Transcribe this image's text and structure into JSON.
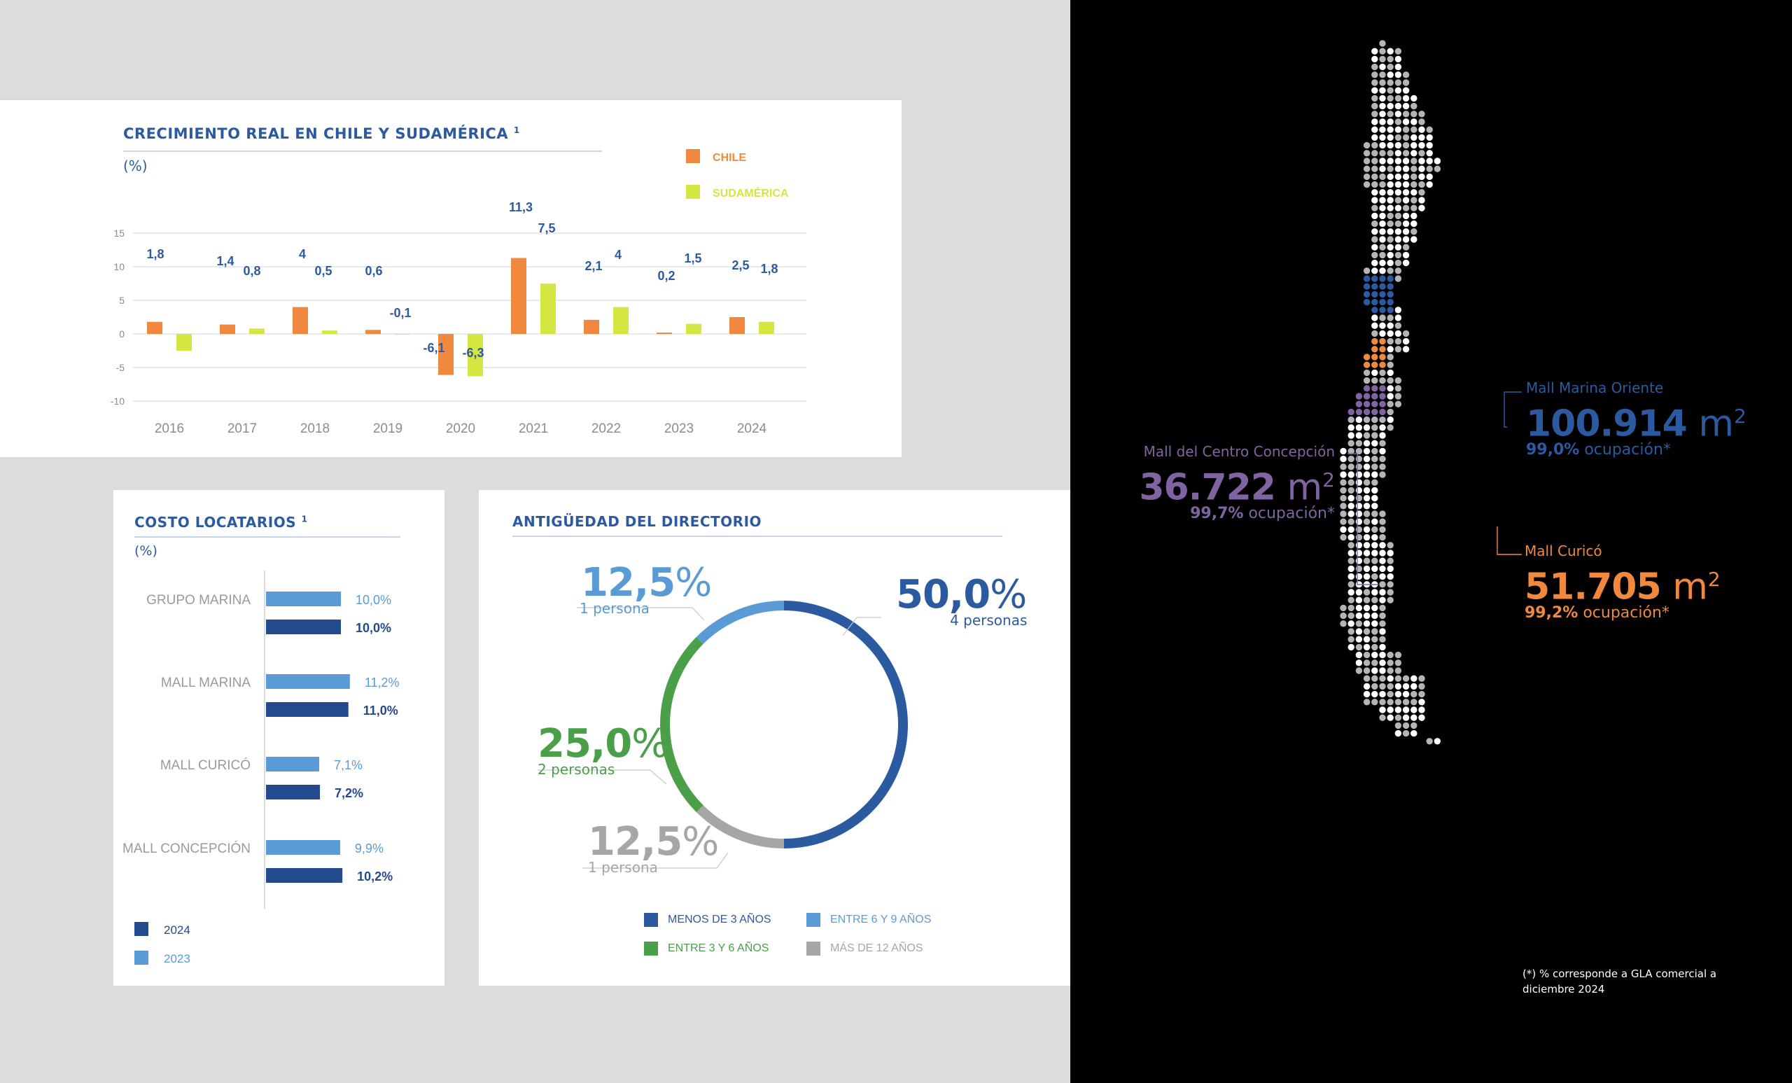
{
  "growth_panel": {
    "title": "CRECIMIENTO REAL EN CHILE Y SUDAMÉRICA",
    "superscript": "1",
    "unit": "(%)"
  },
  "costo_panel": {
    "title": "COSTO LOCATARIOS",
    "superscript": "1",
    "unit": "(%)"
  },
  "antiguedad_panel": {
    "title": "ANTIGÜEDAD DEL DIRECTORIO",
    "callouts": [
      {
        "pct": "12,5",
        "sym": "%",
        "people": "1 persona"
      },
      {
        "pct": "50,0",
        "sym": "%",
        "people": "4 personas"
      },
      {
        "pct": "25,0",
        "sym": "%",
        "people": "2 personas"
      },
      {
        "pct": "12,5",
        "sym": "%",
        "people": "1 persona"
      }
    ]
  },
  "map_panel": {
    "malls": [
      {
        "name": "Mall Marina Oriente",
        "area": "100.914",
        "unit": "m",
        "exp": "2",
        "occ": "99,0%",
        "occ_label": "ocupación*"
      },
      {
        "name": "Mall del Centro Concepción",
        "area": "36.722",
        "unit": "m",
        "exp": "2",
        "occ": "99,7%",
        "occ_label": "ocupación*"
      },
      {
        "name": "Mall Curicó",
        "area": "51.705",
        "unit": "m",
        "exp": "2",
        "occ": "99,2%",
        "occ_label": "ocupación*"
      }
    ],
    "footnote_line1": "(*) % corresponde a GLA comercial a",
    "footnote_line2": "diciembre 2024"
  },
  "colors": {
    "chile": "#f0883e",
    "sudamerica": "#d3e641",
    "blue_dark": "#2c5aa0",
    "blue_light": "#5b9bd5",
    "green": "#4a9f48",
    "gray": "#a6a6a6",
    "purple": "#8064a2",
    "navy": "#234a8c"
  },
  "chart_data": [
    {
      "type": "bar",
      "title": "CRECIMIENTO REAL EN CHILE Y SUDAMÉRICA",
      "ylabel": "(%)",
      "categories": [
        "2016",
        "2017",
        "2018",
        "2019",
        "2020",
        "2021",
        "2022",
        "2023",
        "2024"
      ],
      "series": [
        {
          "name": "CHILE",
          "values": [
            1.8,
            1.4,
            4,
            0.6,
            -6.1,
            11.3,
            2.1,
            0.2,
            2.5
          ],
          "labels": [
            "1,8",
            "1,4",
            "4",
            "0,6",
            "-6,1",
            "11,3",
            "2,1",
            "0,2",
            "2,5"
          ]
        },
        {
          "name": "SUDAMÉRICA",
          "values": [
            -2.5,
            0.8,
            0.5,
            -0.1,
            -6.3,
            7.5,
            4,
            1.5,
            1.8
          ],
          "labels": [
            "",
            "0,8",
            "0,5",
            "-0,1",
            "-6,3",
            "7,5",
            "4",
            "1,5",
            "1,8"
          ]
        }
      ],
      "ylim": [
        -10,
        15
      ],
      "yticks": [
        "15",
        "10",
        "5",
        "0",
        "-5",
        "-10"
      ],
      "grid": true,
      "legend": "top-right"
    },
    {
      "type": "bar",
      "orientation": "horizontal",
      "title": "COSTO LOCATARIOS",
      "ylabel": "(%)",
      "categories": [
        "GRUPO MARINA",
        "MALL MARINA",
        "MALL CURICÓ",
        "MALL CONCEPCIÓN"
      ],
      "series": [
        {
          "name": "2023",
          "values": [
            10.0,
            11.2,
            7.1,
            9.9
          ],
          "labels": [
            "10,0%",
            "11,2%",
            "7,1%",
            "9,9%"
          ]
        },
        {
          "name": "2024",
          "values": [
            10.0,
            11.0,
            7.2,
            10.2
          ],
          "labels": [
            "10,0%",
            "11,0%",
            "7,2%",
            "10,2%"
          ]
        }
      ],
      "legend_order": [
        "2024",
        "2023"
      ],
      "legend": "bottom-left"
    },
    {
      "type": "pie",
      "title": "ANTIGÜEDAD DEL DIRECTORIO",
      "slices": [
        {
          "name": "MENOS DE 3 AÑOS",
          "value": 50.0
        },
        {
          "name": "MÁS DE 12 AÑOS",
          "value": 12.5
        },
        {
          "name": "ENTRE 3 Y 6 AÑOS",
          "value": 25.0
        },
        {
          "name": "ENTRE 6 Y 9 AÑOS",
          "value": 12.5
        }
      ],
      "legend_order": [
        "MENOS DE 3 AÑOS",
        "ENTRE 6 Y 9 AÑOS",
        "ENTRE 3 Y 6 AÑOS",
        "MÁS DE 12 AÑOS"
      ],
      "legend": "bottom"
    }
  ]
}
